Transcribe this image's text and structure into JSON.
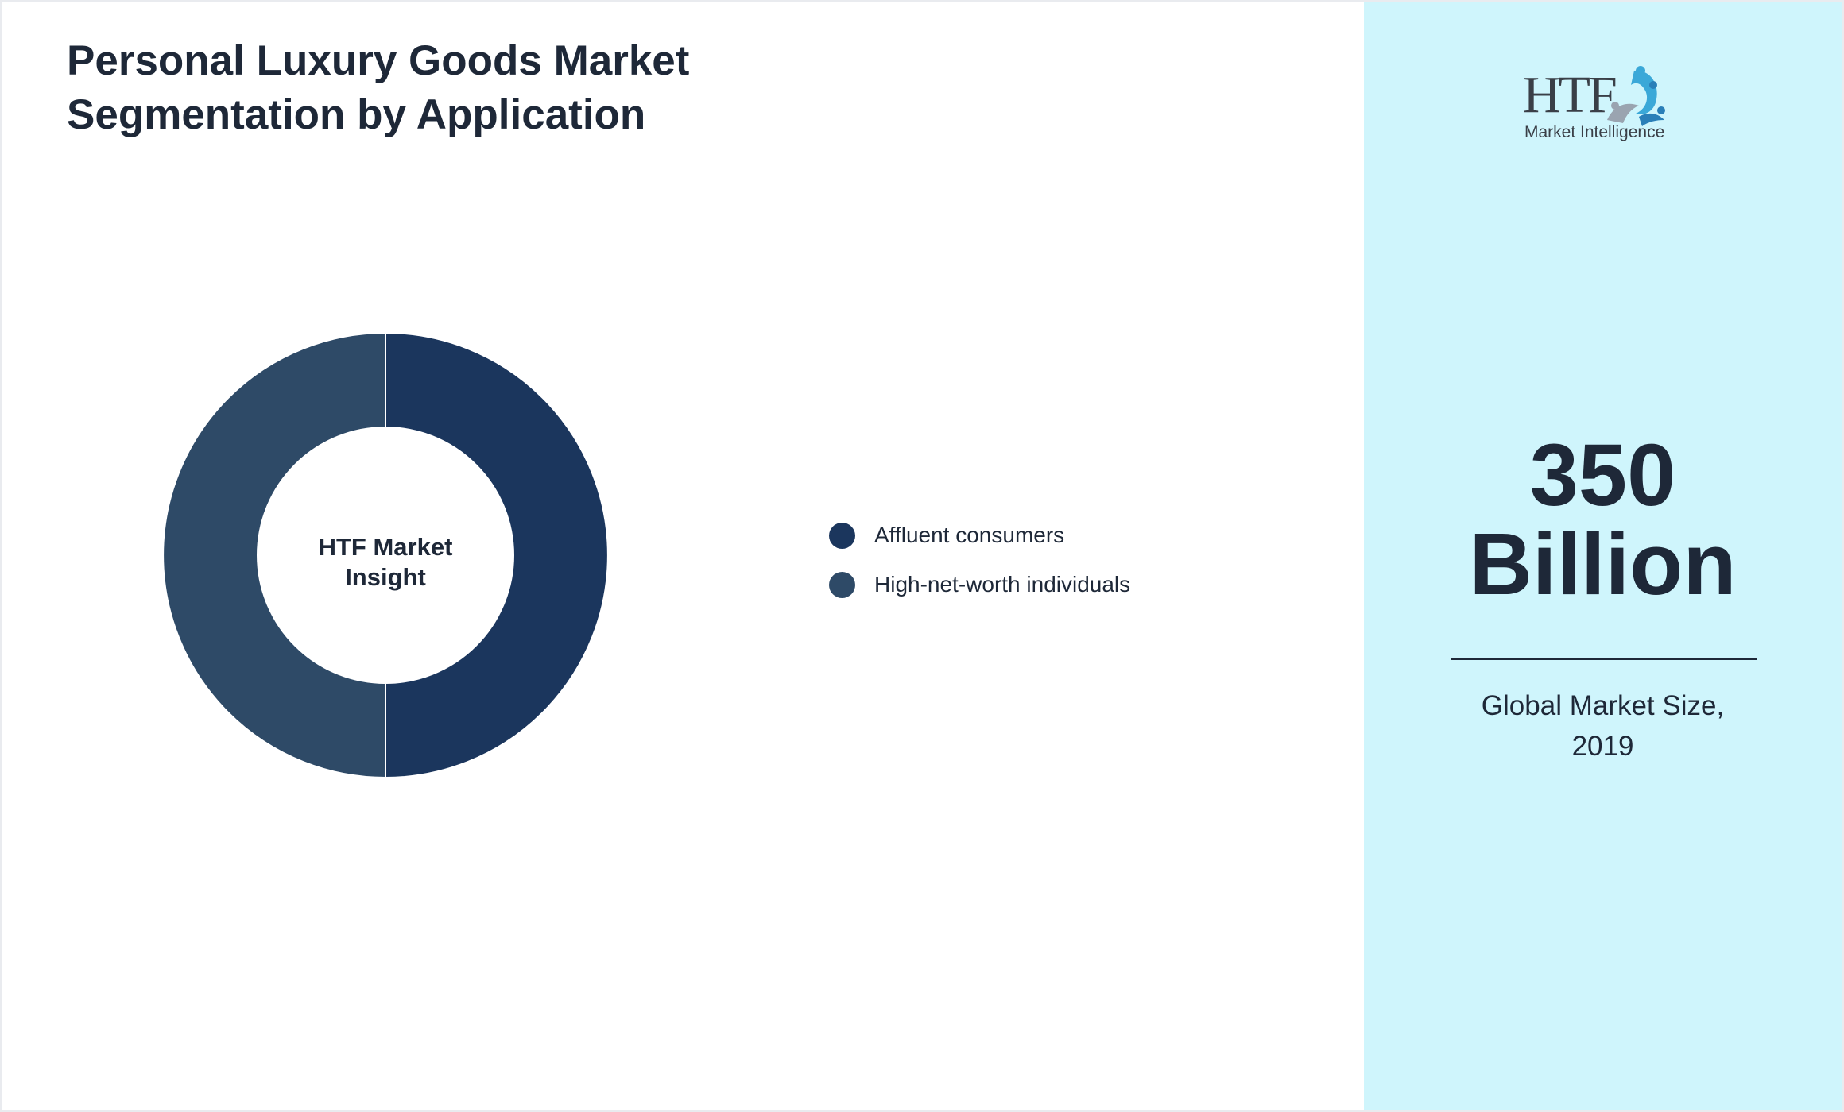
{
  "title": "Personal Luxury Goods Market Segmentation by Application",
  "chart_data": {
    "type": "pie",
    "style": "donut",
    "center_label_lines": [
      "HTF Market",
      "Insight"
    ],
    "legend_position": "right",
    "categories": [
      "Affluent consumers",
      "High-net-worth individuals"
    ],
    "values": [
      50,
      50
    ],
    "colors": [
      "#1b365d",
      "#2e4a67"
    ]
  },
  "metric": {
    "value_lines": [
      "350",
      "Billion"
    ],
    "caption_lines": [
      "Global Market Size,",
      "2019"
    ]
  },
  "logo": {
    "brand": "HTF",
    "tagline": "Market Intelligence"
  },
  "colors": {
    "text": "#1e2838",
    "side_panel": "#cff5fc",
    "logo_accent": "#3aa8d8"
  }
}
